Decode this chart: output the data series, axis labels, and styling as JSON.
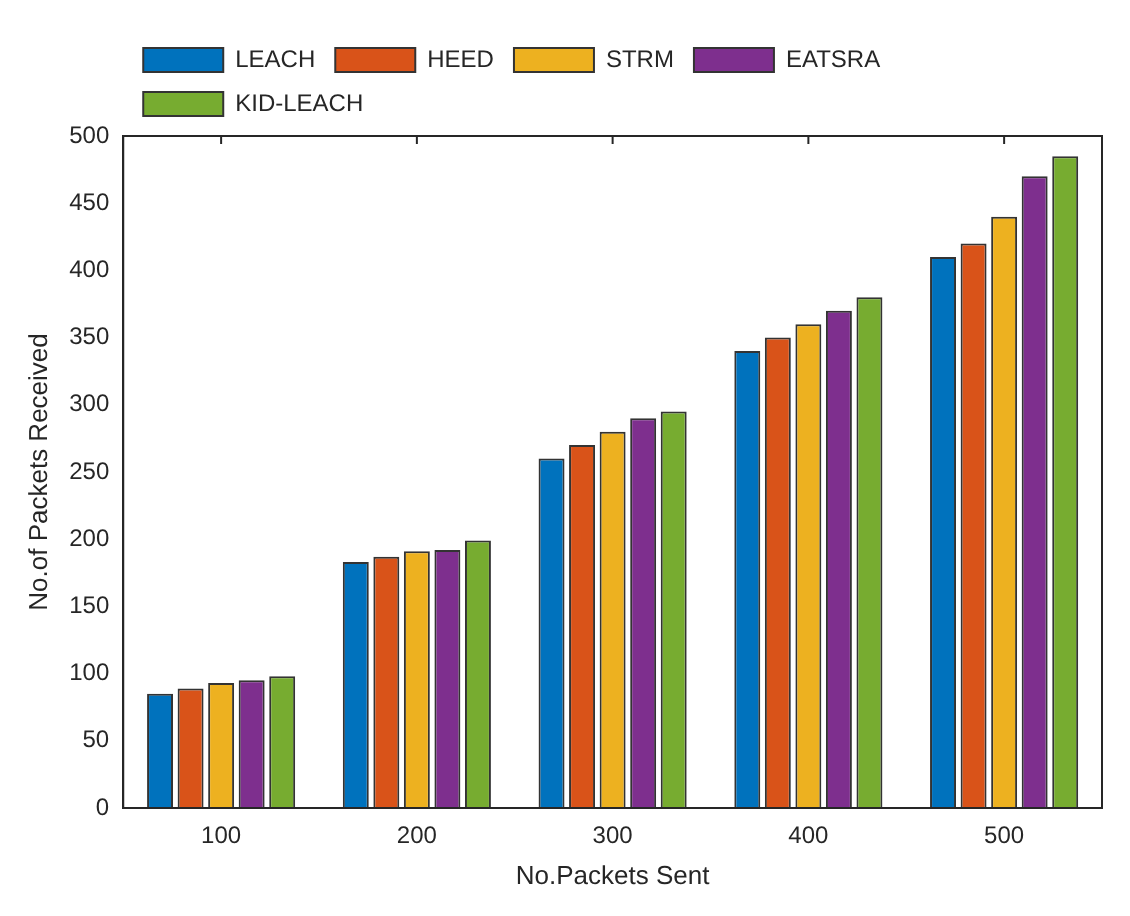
{
  "chart_data": {
    "type": "bar",
    "xlabel": "No.Packets Sent",
    "ylabel": "No.of Packets Received",
    "categories": [
      "100",
      "200",
      "300",
      "400",
      "500"
    ],
    "series": [
      {
        "name": "LEACH",
        "color": "#0072bd",
        "values": [
          85,
          183,
          260,
          340,
          410
        ]
      },
      {
        "name": "HEED",
        "color": "#d95319",
        "values": [
          89,
          187,
          270,
          350,
          420
        ]
      },
      {
        "name": "STRM",
        "color": "#edb120",
        "values": [
          93,
          191,
          280,
          360,
          440
        ]
      },
      {
        "name": "EATSRA",
        "color": "#7e2f8e",
        "values": [
          95,
          192,
          290,
          370,
          470
        ]
      },
      {
        "name": "KID-LEACH",
        "color": "#77ac30",
        "values": [
          98,
          199,
          295,
          380,
          485
        ]
      }
    ],
    "ylim": [
      0,
      500
    ],
    "yticks": [
      0,
      50,
      100,
      150,
      200,
      250,
      300,
      350,
      400,
      450,
      500
    ],
    "grid": false,
    "legend": "top left"
  }
}
